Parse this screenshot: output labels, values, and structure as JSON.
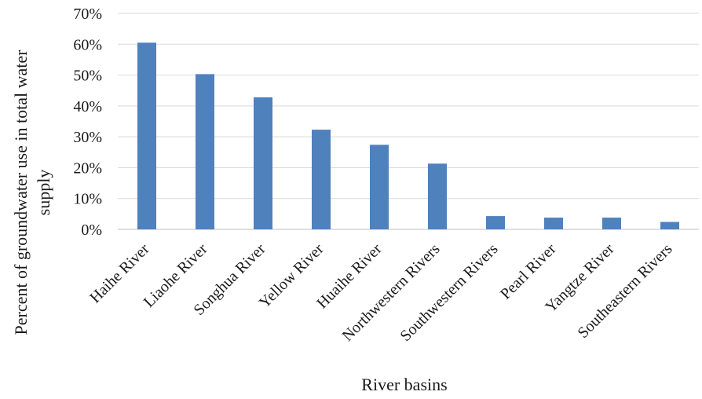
{
  "chart_data": {
    "type": "bar",
    "title": "",
    "xlabel": "River basins",
    "ylabel_lines": [
      "Percent of groundwater use in total water",
      "supply"
    ],
    "categories": [
      "Haihe River",
      "Liaohe River",
      "Songhua River",
      "Yellow River",
      "Huaihe River",
      "Northwestern Rivers",
      "Southwestern Rivers",
      "Pearl River",
      "Yangtze River",
      "Southeastern Rivers"
    ],
    "values": [
      60.5,
      50.3,
      42.8,
      32.3,
      27.4,
      21.3,
      4.3,
      3.8,
      3.8,
      2.4
    ],
    "ylim": [
      0,
      70
    ],
    "yticks": [
      "0%",
      "10%",
      "20%",
      "30%",
      "40%",
      "50%",
      "60%",
      "70%"
    ],
    "ytick_values": [
      0,
      10,
      20,
      30,
      40,
      50,
      60,
      70
    ],
    "grid": true,
    "legend": "none",
    "bar_color": "#4f81bd"
  }
}
